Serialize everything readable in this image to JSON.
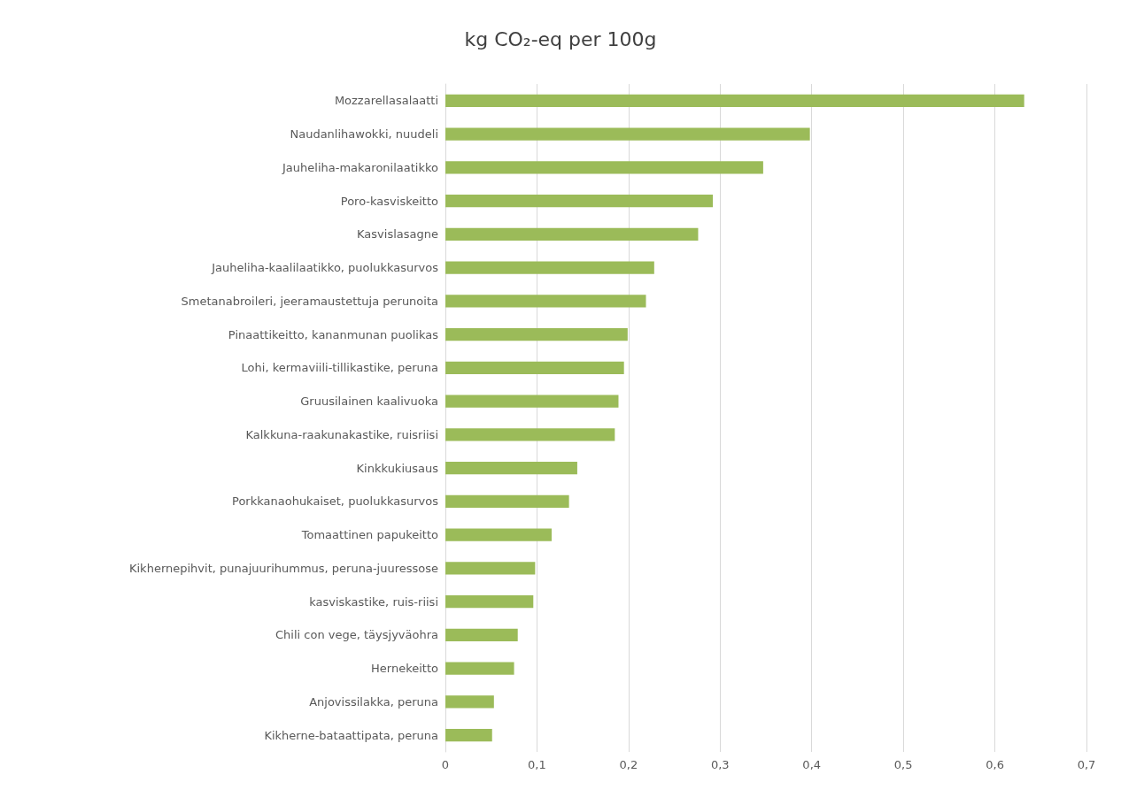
{
  "chart_data": {
    "type": "bar",
    "orientation": "horizontal",
    "title": "kg CO₂-eq per 100g",
    "categories": [
      "Mozzarellasalaatti",
      "Naudanlihawokki, nuudeli",
      "Jauheliha-makaronilaatikko",
      "Poro-kasviskeitto",
      "Kasvislasagne",
      "Jauheliha-kaalilaatikko, puolukkasurvos",
      "Smetanabroileri, jeeramaustettuja perunoita",
      "Pinaattikeitto, kananmunan puolikas",
      "Lohi, kermaviili-tillikastike, peruna",
      "Gruusilainen kaalivuoka",
      "Kalkkuna-raakunakastike, ruisriisi",
      "Kinkkukiusaus",
      "Porkkanaohukaiset, puolukkasurvos",
      "Tomaattinen papukeitto",
      "Kikhernepihvit, punajuurihummus, peruna-juuressose",
      "kasviskastike, ruis-riisi",
      "Chili con vege, täysjyväohra",
      "Hernekeitto",
      "Anjovissilakka, peruna",
      "Kikherne-bataattipata, peruna"
    ],
    "values": [
      0.632,
      0.398,
      0.347,
      0.292,
      0.276,
      0.228,
      0.219,
      0.199,
      0.195,
      0.189,
      0.185,
      0.144,
      0.135,
      0.116,
      0.098,
      0.096,
      0.079,
      0.075,
      0.053,
      0.051
    ],
    "color": "#9bbb59",
    "xlim": [
      0,
      0.7
    ],
    "xticks": [
      0,
      {
        "value": 0.1,
        "label": "0,1"
      },
      {
        "value": 0.2,
        "label": "0,2"
      },
      {
        "value": 0.3,
        "label": "0,3"
      },
      {
        "value": 0.4,
        "label": "0,4"
      },
      {
        "value": 0.5,
        "label": "0,5"
      },
      {
        "value": 0.6,
        "label": "0,6"
      },
      {
        "value": 0.7,
        "label": "0,7"
      }
    ],
    "grid": "x"
  }
}
